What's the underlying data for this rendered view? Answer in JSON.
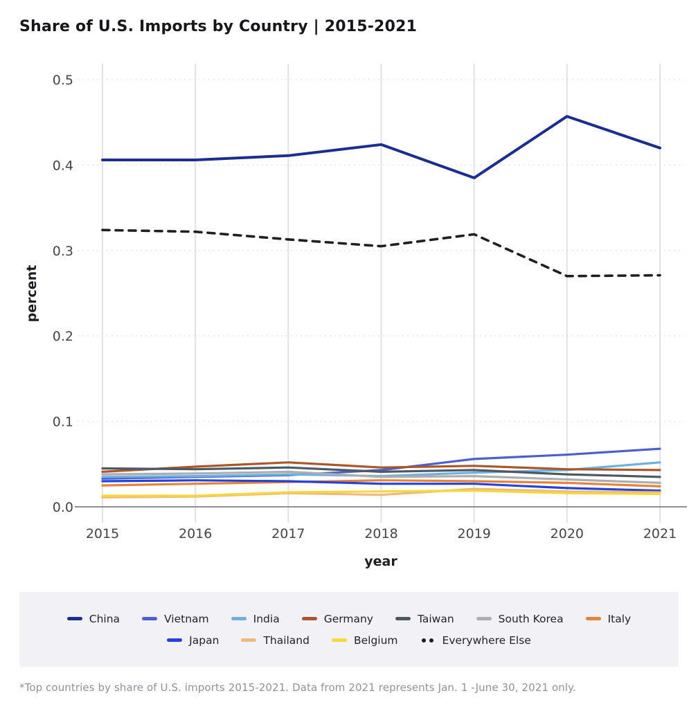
{
  "header": {
    "title": "Share of U.S. Imports by Country | 2015-2021"
  },
  "footnote": "*Top countries by share of U.S. imports 2015-2021. Data from 2021 represents Jan. 1 -June 30, 2021 only.",
  "chart_data": {
    "type": "line",
    "title": "Share of U.S. Imports by Country | 2015-2021",
    "xlabel": "year",
    "ylabel": "percent",
    "x": [
      2015,
      2016,
      2017,
      2018,
      2019,
      2020,
      2021
    ],
    "ylim": [
      0.0,
      0.5
    ],
    "yticks": [
      0.0,
      0.1,
      0.2,
      0.3,
      0.4,
      0.5
    ],
    "grid": true,
    "legend_position": "bottom",
    "legend_rows": [
      7,
      4
    ],
    "axis_colors": {
      "gridline_vertical": "#e2e2e6",
      "gridline_horizontal": "#e8e8ec",
      "axis_line": "#8f8f94",
      "tick_label": "#44444a"
    },
    "series": [
      {
        "name": "China",
        "color": "#1b2d8f",
        "style": "solid",
        "width": 4,
        "values": [
          0.406,
          0.406,
          0.411,
          0.424,
          0.385,
          0.457,
          0.42
        ]
      },
      {
        "name": "Vietnam",
        "color": "#4a60ce",
        "style": "solid",
        "width": 3.2,
        "values": [
          0.033,
          0.035,
          0.037,
          0.043,
          0.056,
          0.061,
          0.068
        ]
      },
      {
        "name": "India",
        "color": "#6fb0dd",
        "style": "solid",
        "width": 3.2,
        "values": [
          0.035,
          0.036,
          0.038,
          0.036,
          0.04,
          0.043,
          0.052
        ]
      },
      {
        "name": "Germany",
        "color": "#a9562c",
        "style": "solid",
        "width": 3.2,
        "values": [
          0.041,
          0.047,
          0.052,
          0.046,
          0.048,
          0.044,
          0.043
        ]
      },
      {
        "name": "Taiwan",
        "color": "#4c5963",
        "style": "solid",
        "width": 3.2,
        "values": [
          0.045,
          0.044,
          0.046,
          0.041,
          0.043,
          0.038,
          0.035
        ]
      },
      {
        "name": "South Korea",
        "color": "#a9aeb4",
        "style": "solid",
        "width": 3.2,
        "values": [
          0.038,
          0.039,
          0.041,
          0.035,
          0.036,
          0.032,
          0.028
        ]
      },
      {
        "name": "Italy",
        "color": "#e58338",
        "style": "solid",
        "width": 3.2,
        "values": [
          0.025,
          0.027,
          0.029,
          0.031,
          0.03,
          0.028,
          0.024
        ]
      },
      {
        "name": "Japan",
        "color": "#2342dd",
        "style": "solid",
        "width": 3.2,
        "values": [
          0.03,
          0.031,
          0.03,
          0.027,
          0.027,
          0.022,
          0.019
        ]
      },
      {
        "name": "Thailand",
        "color": "#eeb97e",
        "style": "solid",
        "width": 3.2,
        "values": [
          0.011,
          0.012,
          0.016,
          0.014,
          0.021,
          0.018,
          0.017
        ]
      },
      {
        "name": "Belgium",
        "color": "#f6d83c",
        "style": "solid",
        "width": 3.2,
        "values": [
          0.013,
          0.013,
          0.017,
          0.018,
          0.019,
          0.016,
          0.015
        ]
      },
      {
        "name": "Everywhere Else",
        "color": "#1f1f23",
        "style": "dashed",
        "width": 3.6,
        "values": [
          0.324,
          0.322,
          0.313,
          0.305,
          0.319,
          0.27,
          0.271
        ]
      }
    ]
  }
}
